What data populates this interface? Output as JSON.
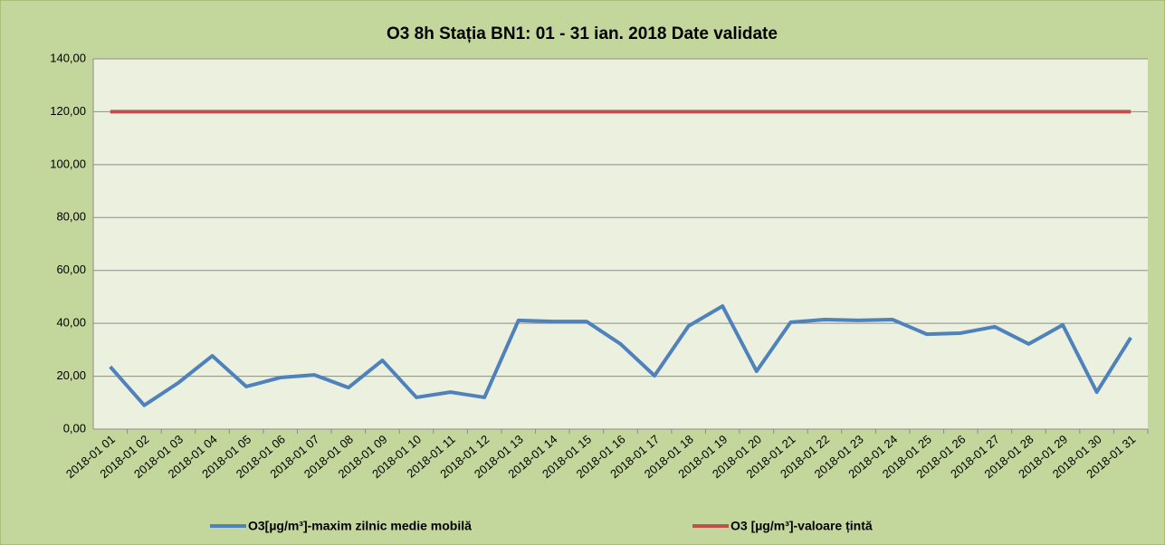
{
  "chart_data": {
    "type": "line",
    "title": "O3 8h  Stația BN1: 01 - 31 ian. 2018 Date validate",
    "categories": [
      "2018-01 01",
      "2018-01 02",
      "2018-01 03",
      "2018-01 04",
      "2018-01 05",
      "2018-01 06",
      "2018-01 07",
      "2018-01 08",
      "2018-01 09",
      "2018-01 10",
      "2018-01 11",
      "2018-01 12",
      "2018-01 13",
      "2018-01 14",
      "2018-01 15",
      "2018-01 16",
      "2018-01 17",
      "2018-01 18",
      "2018-01 19",
      "2018-01 20",
      "2018-01 21",
      "2018-01 22",
      "2018-01 23",
      "2018-01 24",
      "2018-01 25",
      "2018-01 26",
      "2018-01 27",
      "2018-01 28",
      "2018-01 29",
      "2018-01 30",
      "2018-01 31"
    ],
    "series": [
      {
        "name": "O3[µg/m³]-maxim zilnic medie mobilă",
        "color": "#4f81bd",
        "values": [
          23.6,
          9.0,
          17.5,
          27.7,
          16.1,
          19.5,
          20.5,
          15.7,
          26.0,
          12.0,
          14.0,
          12.0,
          41.1,
          40.7,
          40.7,
          32.2,
          20.2,
          39.0,
          46.5,
          21.9,
          40.4,
          41.4,
          41.1,
          41.4,
          35.9,
          36.3,
          38.7,
          32.2,
          39.4,
          14.0,
          34.6
        ]
      },
      {
        "name": "O3 [µg/m³]-valoare țintă",
        "color": "#c0504d",
        "values": [
          120,
          120,
          120,
          120,
          120,
          120,
          120,
          120,
          120,
          120,
          120,
          120,
          120,
          120,
          120,
          120,
          120,
          120,
          120,
          120,
          120,
          120,
          120,
          120,
          120,
          120,
          120,
          120,
          120,
          120,
          120
        ]
      }
    ],
    "ylim": [
      0,
      140
    ],
    "yticks": [
      {
        "value": 0,
        "label": "0,00"
      },
      {
        "value": 20,
        "label": "20,00"
      },
      {
        "value": 40,
        "label": "40,00"
      },
      {
        "value": 60,
        "label": "60,00"
      },
      {
        "value": 80,
        "label": "80,00"
      },
      {
        "value": 100,
        "label": "100,00"
      },
      {
        "value": 120,
        "label": "120,00"
      },
      {
        "value": 140,
        "label": "140,00"
      }
    ],
    "grid": true,
    "legend": "bottom"
  }
}
